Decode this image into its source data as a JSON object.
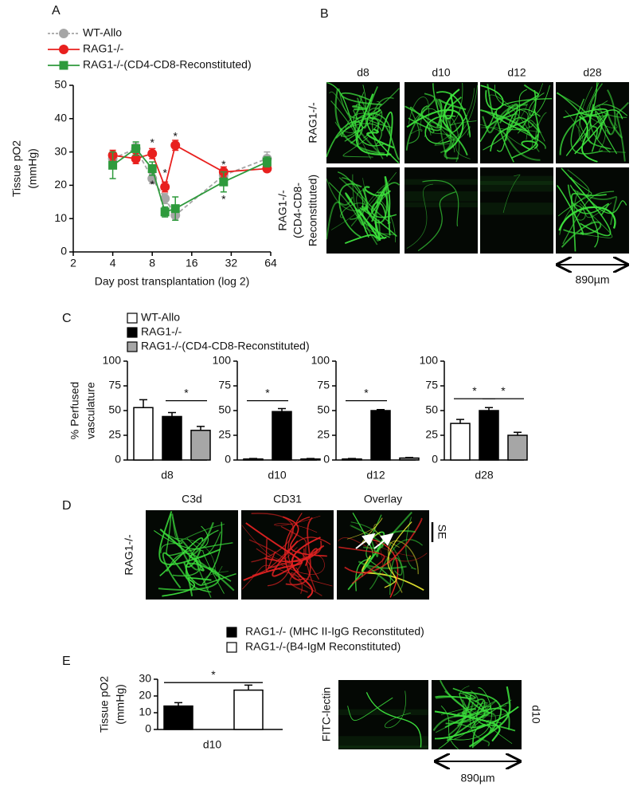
{
  "panel_labels": {
    "a": "A",
    "b": "B",
    "c": "C",
    "d": "D",
    "e": "E"
  },
  "chart_data": [
    {
      "type": "line",
      "xscale": "log2",
      "ylabel": [
        "Tissue pO2",
        "(mmHg)"
      ],
      "xlabel": "Day post transplantation (log 2)",
      "xlim": [
        2,
        64
      ],
      "xticks": [
        2,
        4,
        8,
        16,
        32,
        64
      ],
      "ylim": [
        0,
        50
      ],
      "yticks": [
        0,
        10,
        20,
        30,
        40,
        50
      ],
      "series": [
        {
          "name": "WT-Allo",
          "color": "#a6a6a6",
          "marker": "circle",
          "dashed": true,
          "x": [
            4,
            6,
            8,
            10,
            12,
            28,
            60
          ],
          "values": [
            28,
            31,
            22,
            16,
            11,
            23,
            28
          ],
          "errors": [
            2,
            1.5,
            1.5,
            1.5,
            1.5,
            1.5,
            2
          ]
        },
        {
          "name": "RAG1-/-",
          "color": "#e8201e",
          "marker": "circle",
          "dashed": false,
          "x": [
            4,
            6,
            8,
            10,
            12,
            28,
            60
          ],
          "values": [
            29,
            28,
            29.5,
            19.5,
            32,
            24,
            25
          ],
          "errors": [
            1.5,
            1.5,
            1.5,
            1.5,
            1.5,
            1.5,
            1
          ]
        },
        {
          "name": "RAG1-/-(CD4-CD8-Reconstituted)",
          "color": "#2e9a3c",
          "marker": "square",
          "dashed": false,
          "x": [
            4,
            6,
            8,
            10,
            12,
            28,
            60
          ],
          "values": [
            26,
            31,
            25,
            12,
            13,
            21,
            27
          ],
          "errors": [
            4,
            2,
            2,
            1.5,
            3.5,
            3,
            1.5
          ]
        }
      ],
      "annotations": [
        {
          "text": "*",
          "x": 8,
          "y": 33.5
        },
        {
          "text": "*",
          "x": 8,
          "y": 21
        },
        {
          "text": "*",
          "x": 10,
          "y": 24.5
        },
        {
          "text": "*",
          "x": 12,
          "y": 35.5
        },
        {
          "text": "*",
          "x": 28,
          "y": 27
        },
        {
          "text": "*",
          "x": 28,
          "y": 16.5
        }
      ]
    },
    {
      "type": "faceted-bar",
      "ylabel": [
        "% Perfused",
        "vasculature"
      ],
      "categories": [
        "d8",
        "d10",
        "d12",
        "d28"
      ],
      "ylim": [
        0,
        100
      ],
      "yticks": [
        0,
        25,
        50,
        75,
        100
      ],
      "series": [
        {
          "name": "WT-Allo",
          "color": "#ffffff",
          "values": [
            53,
            1,
            1,
            37
          ],
          "errors": [
            8,
            0.5,
            0.5,
            4
          ]
        },
        {
          "name": "RAG1-/-",
          "color": "#000000",
          "values": [
            44,
            49,
            50,
            50
          ],
          "errors": [
            4,
            3,
            1,
            3
          ]
        },
        {
          "name": "RAG1-/-(CD4-CD8-Reconstituted)",
          "color": "#a6a6a6",
          "values": [
            30,
            1,
            2,
            25
          ],
          "errors": [
            4,
            0.5,
            0.5,
            3
          ]
        }
      ],
      "annotations": [
        {
          "text": "*",
          "category": 0,
          "from": 1,
          "to": 2,
          "y": 60
        },
        {
          "text": "*",
          "category": 1,
          "from": 0,
          "to": 1,
          "y": 60
        },
        {
          "text": "*",
          "category": 2,
          "from": 0,
          "to": 1,
          "y": 60
        },
        {
          "text": "*",
          "category": 3,
          "from": 0,
          "to": 1,
          "y": 62
        },
        {
          "text": "*",
          "category": 3,
          "from": 1,
          "to": 2,
          "y": 62
        }
      ]
    },
    {
      "type": "bar",
      "ylabel": [
        "Tissue pO2",
        "(mmHg)"
      ],
      "categories": [
        "d10"
      ],
      "ylim": [
        0,
        30
      ],
      "yticks": [
        0,
        10,
        20,
        30
      ],
      "series": [
        {
          "name": "RAG1-/- (MHC II-IgG Reconstituted)",
          "color": "#000000",
          "values": [
            14
          ],
          "errors": [
            2
          ]
        },
        {
          "name": "RAG1-/-(B4-IgM Reconstituted)",
          "color": "#ffffff",
          "values": [
            23.5
          ],
          "errors": [
            3
          ]
        }
      ],
      "annotations": [
        {
          "text": "*",
          "from": 0,
          "to": 1,
          "y": 28
        }
      ]
    }
  ],
  "panel_b": {
    "columns": [
      "d8",
      "d10",
      "d12",
      "d28"
    ],
    "rows": [
      [
        "RAG1-/-"
      ],
      [
        "RAG1-/-",
        "(CD4-CD8-",
        "Reconstituted)"
      ]
    ],
    "scale_bar": "890µm"
  },
  "panel_d": {
    "columns": [
      "C3d",
      "CD31",
      "Overlay"
    ],
    "row": "RAG1-/-",
    "marker": "SE"
  },
  "panel_e_image": {
    "stain": "FITC-lectin",
    "day": "d10",
    "scale_bar": "890µm"
  }
}
